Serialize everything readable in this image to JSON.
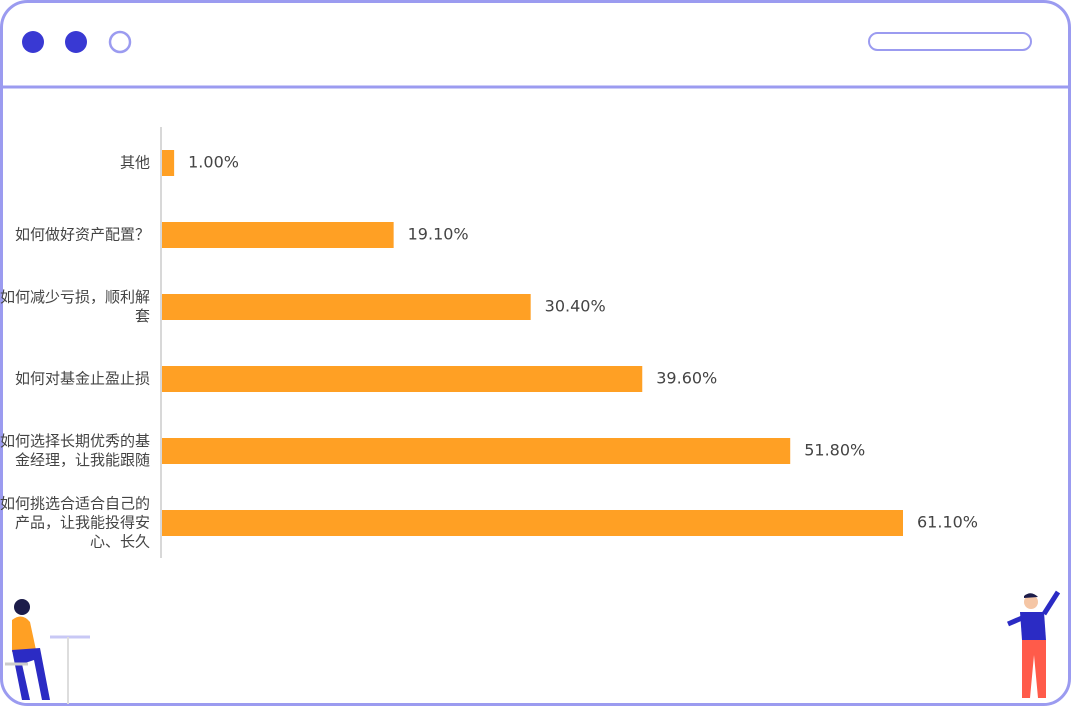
{
  "chart_data": {
    "type": "bar",
    "orientation": "horizontal",
    "categories": [
      "其他",
      "如何做好资产配置？",
      "如何减少亏损，顺利解套",
      "如何对基金止盈止损",
      "如何选择长期优秀的基金经理，让我能跟随",
      "如何挑选合适合自己的产品，让我能投得安心、长久"
    ],
    "values": [
      1.0,
      19.1,
      30.4,
      39.6,
      51.8,
      61.1
    ],
    "value_labels": [
      "1.00%",
      "19.10%",
      "30.40%",
      "39.60%",
      "51.80%",
      "61.10%"
    ],
    "color": "#ffa024"
  }
}
